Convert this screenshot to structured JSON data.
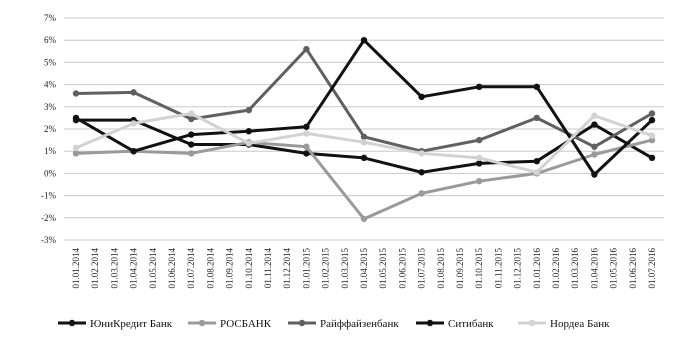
{
  "chart_data": {
    "type": "line",
    "title": "",
    "xlabel": "",
    "ylabel": "",
    "ylim": [
      -3,
      7
    ],
    "y_ticks": [
      -3,
      -2,
      -1,
      0,
      1,
      2,
      3,
      4,
      5,
      6,
      7
    ],
    "y_tick_labels": [
      "-3%",
      "-2%",
      "-1%",
      "0%",
      "1%",
      "2%",
      "3%",
      "4%",
      "5%",
      "6%",
      "7%"
    ],
    "grid": "horizontal",
    "legend_position": "bottom",
    "categories": [
      "01.01.2014",
      "01.02.2014",
      "01.03.2014",
      "01.04.2014",
      "01.05.2014",
      "01.06.2014",
      "01.07.2014",
      "01.08.2014",
      "01.09.2014",
      "01.10.2014",
      "01.11.2014",
      "01.12.2014",
      "01.01.2015",
      "01.02.2015",
      "01.03.2015",
      "01.04.2015",
      "01.05.2015",
      "01.06.2015",
      "01.07.2015",
      "01.08.2015",
      "01.09.2015",
      "01.10.2015",
      "01.11.2015",
      "01.12.2015",
      "01.01.2016",
      "01.02.2016",
      "01.03.2016",
      "01.04.2016",
      "01.05.2016",
      "01.06.2016",
      "01.07.2016"
    ],
    "series": [
      {
        "name": "ЮниКредит Банк",
        "color": "#111111",
        "width": 3,
        "points": [
          [
            0,
            2.4
          ],
          [
            3,
            2.4
          ],
          [
            6,
            1.3
          ],
          [
            9,
            1.3
          ],
          [
            12,
            0.9
          ],
          [
            15,
            0.7
          ],
          [
            18,
            0.05
          ],
          [
            21,
            0.45
          ],
          [
            24,
            0.55
          ],
          [
            27,
            2.2
          ],
          [
            30,
            0.7
          ]
        ]
      },
      {
        "name": "РОСБАНК",
        "color": "#9a9a9a",
        "width": 3,
        "points": [
          [
            0,
            0.9
          ],
          [
            3,
            1.0
          ],
          [
            6,
            0.9
          ],
          [
            9,
            1.4
          ],
          [
            12,
            1.2
          ],
          [
            15,
            -2.05
          ],
          [
            18,
            -0.9
          ],
          [
            21,
            -0.35
          ],
          [
            24,
            0.0
          ],
          [
            27,
            0.85
          ],
          [
            30,
            1.5
          ]
        ]
      },
      {
        "name": "Райффайзенбанк",
        "color": "#606060",
        "width": 3,
        "points": [
          [
            0,
            3.6
          ],
          [
            3,
            3.65
          ],
          [
            6,
            2.45
          ],
          [
            9,
            2.85
          ],
          [
            12,
            5.6
          ],
          [
            15,
            1.65
          ],
          [
            18,
            1.0
          ],
          [
            21,
            1.5
          ],
          [
            24,
            2.5
          ],
          [
            27,
            1.2
          ],
          [
            30,
            2.7
          ]
        ]
      },
      {
        "name": "Ситибанк",
        "color": "#111111",
        "width": 3,
        "points": [
          [
            0,
            2.5
          ],
          [
            3,
            1.0
          ],
          [
            6,
            1.75
          ],
          [
            9,
            1.9
          ],
          [
            12,
            2.1
          ],
          [
            15,
            6.0
          ],
          [
            18,
            3.45
          ],
          [
            21,
            3.9
          ],
          [
            24,
            3.9
          ],
          [
            27,
            -0.05
          ],
          [
            30,
            2.4
          ]
        ]
      },
      {
        "name": "Нордеа Банк",
        "color": "#d2d2d2",
        "width": 3,
        "points": [
          [
            0,
            1.15
          ],
          [
            3,
            2.25
          ],
          [
            6,
            2.7
          ],
          [
            9,
            1.35
          ],
          [
            12,
            1.8
          ],
          [
            15,
            1.4
          ],
          [
            18,
            0.9
          ],
          [
            21,
            0.7
          ],
          [
            24,
            0.05
          ],
          [
            27,
            2.6
          ],
          [
            30,
            1.7
          ]
        ]
      }
    ]
  }
}
